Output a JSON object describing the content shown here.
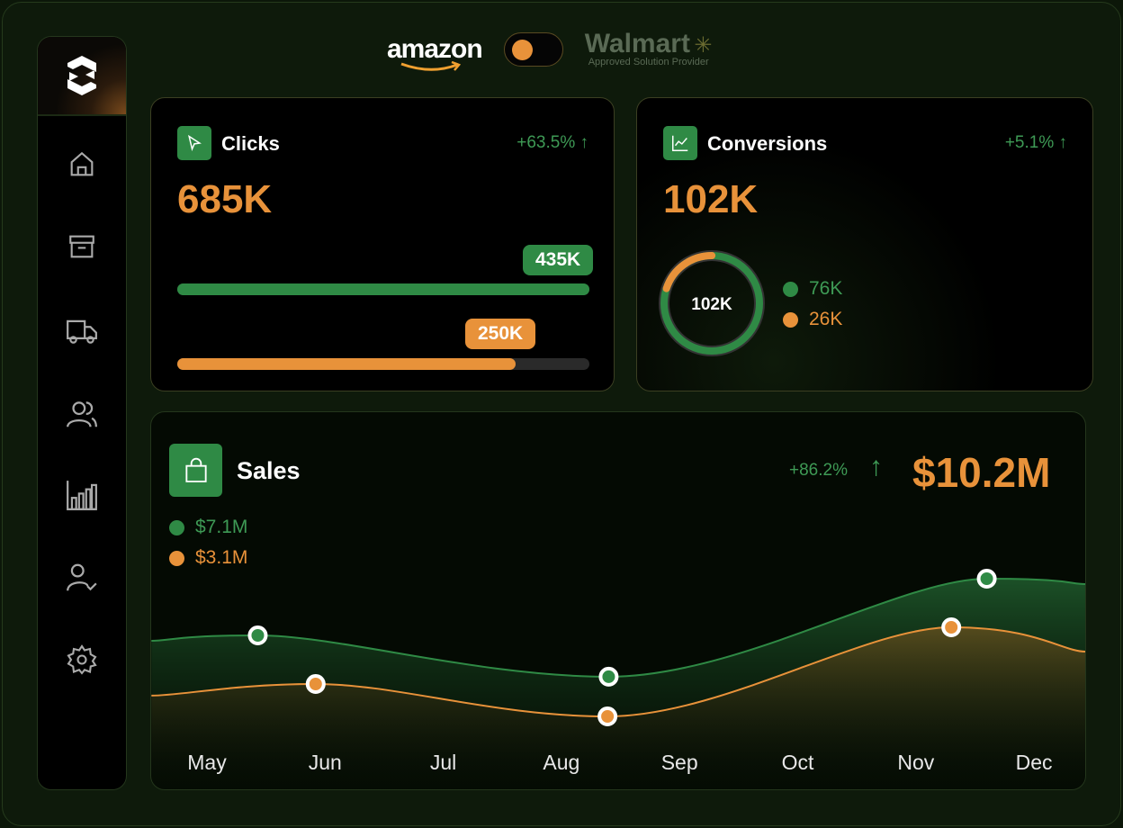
{
  "header": {
    "amazon": "amazon",
    "walmart": "Walmart",
    "walmart_sub": "Approved Solution Provider",
    "toggle_on": false
  },
  "sidebar": {
    "items": [
      "home",
      "archive",
      "delivery",
      "users",
      "analytics",
      "user-check",
      "settings"
    ]
  },
  "clicks": {
    "title": "Clicks",
    "change": "+63.5% ↑",
    "total": "685K",
    "bars": [
      {
        "label": "435K",
        "fraction": 1.0,
        "color": "#2f8a45"
      },
      {
        "label": "250K",
        "fraction": 0.82,
        "color": "#e8923a"
      }
    ]
  },
  "conversions": {
    "title": "Conversions",
    "change": "+5.1% ↑",
    "total": "102K",
    "donut_center": "102K",
    "legend": [
      {
        "label": "76K",
        "color": "#2f8a45"
      },
      {
        "label": "26K",
        "color": "#e8923a"
      }
    ],
    "orange_fraction": 0.2
  },
  "sales": {
    "title": "Sales",
    "change": "+86.2%",
    "arrow": "↑",
    "total": "$10.2M",
    "legend": [
      {
        "label": "$7.1M",
        "color": "#2f8a45"
      },
      {
        "label": "$3.1M",
        "color": "#e8923a"
      }
    ]
  },
  "chart_data": {
    "type": "area",
    "categories": [
      "May",
      "Jun",
      "Jul",
      "Aug",
      "Sep",
      "Oct",
      "Nov",
      "Dec"
    ],
    "ylim": [
      0,
      100
    ],
    "series": [
      {
        "name": "$7.1M",
        "color": "#2f8a45",
        "points": [
          [
            -0.47,
            56
          ],
          [
            0.43,
            58
          ],
          [
            3.4,
            42.7
          ],
          [
            6.6,
            79
          ],
          [
            7.44,
            77
          ]
        ],
        "markers": [
          1,
          2,
          3
        ]
      },
      {
        "name": "$3.1M",
        "color": "#e8923a",
        "points": [
          [
            -0.47,
            35.7
          ],
          [
            0.92,
            40
          ],
          [
            3.39,
            28
          ],
          [
            6.3,
            61
          ],
          [
            7.44,
            52
          ]
        ],
        "markers": [
          1,
          2,
          3
        ]
      }
    ]
  }
}
